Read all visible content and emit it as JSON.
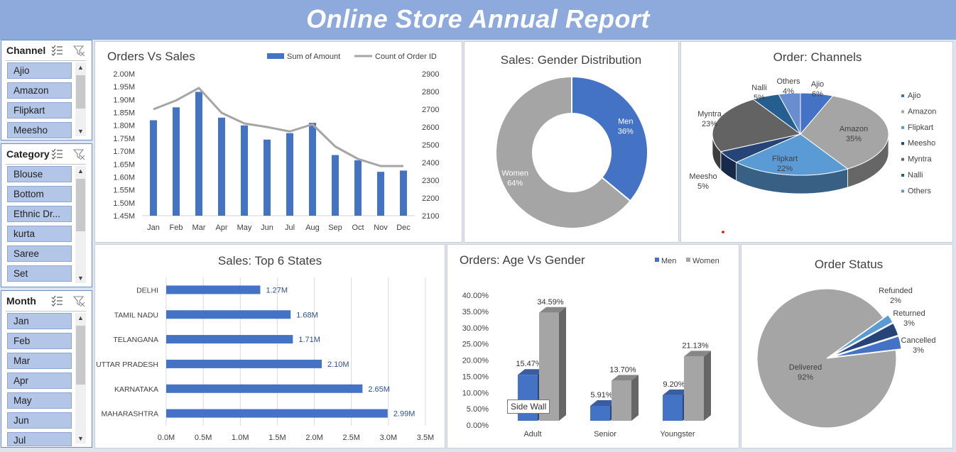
{
  "report_title": "Online Store Annual Report",
  "slicers": [
    {
      "title": "Channel",
      "items": [
        "Ajio",
        "Amazon",
        "Flipkart",
        "Meesho"
      ]
    },
    {
      "title": "Category",
      "items": [
        "Blouse",
        "Bottom",
        "Ethnic Dr...",
        "kurta",
        "Saree",
        "Set"
      ]
    },
    {
      "title": "Month",
      "items": [
        "Jan",
        "Feb",
        "Mar",
        "Apr",
        "May",
        "Jun",
        "Jul"
      ]
    }
  ],
  "tooltip": "Side Wall",
  "chart_data": [
    {
      "type": "bar",
      "title": "Orders Vs Sales",
      "categories": [
        "Jan",
        "Feb",
        "Mar",
        "Apr",
        "May",
        "Jun",
        "Jul",
        "Aug",
        "Sep",
        "Oct",
        "Nov",
        "Dec"
      ],
      "series": [
        {
          "name": "Sum of Amount",
          "type": "bar",
          "axis": "left",
          "values": [
            1.82,
            1.87,
            1.93,
            1.83,
            1.8,
            1.745,
            1.77,
            1.81,
            1.685,
            1.665,
            1.62,
            1.625
          ]
        },
        {
          "name": "Count of Order ID",
          "type": "line",
          "axis": "right",
          "values": [
            2700,
            2750,
            2820,
            2680,
            2620,
            2600,
            2575,
            2615,
            2490,
            2420,
            2380,
            2380
          ]
        }
      ],
      "y_left_ticks": [
        "1.45M",
        "1.50M",
        "1.55M",
        "1.60M",
        "1.65M",
        "1.70M",
        "1.75M",
        "1.80M",
        "1.85M",
        "1.90M",
        "1.95M",
        "2.00M"
      ],
      "y_right_ticks": [
        "2100",
        "2200",
        "2300",
        "2400",
        "2500",
        "2600",
        "2700",
        "2800",
        "2900"
      ],
      "ylim_left": [
        1.45,
        2.0
      ],
      "ylim_right": [
        2100,
        2900
      ],
      "legend_position": "top-right",
      "grid": false,
      "colors": {
        "bar": "#4472c4",
        "line": "#a5a5a5"
      }
    },
    {
      "type": "pie",
      "variant": "donut",
      "title": "Sales: Gender Distribution",
      "slices": [
        {
          "label": "Men",
          "pct_label": "36%",
          "value": 36,
          "color": "#4472c4"
        },
        {
          "label": "Women",
          "pct_label": "64%",
          "value": 64,
          "color": "#a5a5a5"
        }
      ]
    },
    {
      "type": "pie",
      "variant": "3d",
      "title": "Order: Channels",
      "slices": [
        {
          "label": "Ajio",
          "pct_label": "6%",
          "value": 6,
          "color": "#4472c4"
        },
        {
          "label": "Amazon",
          "pct_label": "35%",
          "value": 35,
          "color": "#a5a5a5"
        },
        {
          "label": "Flipkart",
          "pct_label": "22%",
          "value": 22,
          "color": "#5b9bd5"
        },
        {
          "label": "Meesho",
          "pct_label": "5%",
          "value": 5,
          "color": "#264478"
        },
        {
          "label": "Myntra",
          "pct_label": "23%",
          "value": 23,
          "color": "#636363"
        },
        {
          "label": "Nalli",
          "pct_label": "5%",
          "value": 5,
          "color": "#255e91"
        },
        {
          "label": "Others",
          "pct_label": "4%",
          "value": 4,
          "color": "#698ed0"
        }
      ],
      "legend_position": "right"
    },
    {
      "type": "bar",
      "orientation": "horizontal",
      "title": "Sales: Top 6 States",
      "categories": [
        "DELHI",
        "TAMIL NADU",
        "TELANGANA",
        "UTTAR PRADESH",
        "KARNATAKA",
        "MAHARASHTRA"
      ],
      "values": [
        1.27,
        1.68,
        1.71,
        2.1,
        2.65,
        2.99
      ],
      "value_labels": [
        "1.27M",
        "1.68M",
        "1.71M",
        "2.10M",
        "2.65M",
        "2.99M"
      ],
      "x_ticks": [
        "0.0M",
        "0.5M",
        "1.0M",
        "1.5M",
        "2.0M",
        "2.5M",
        "3.0M",
        "3.5M"
      ],
      "xlim": [
        0,
        3.5
      ],
      "grid": true,
      "color": "#4472c4"
    },
    {
      "type": "bar",
      "variant": "3d-clustered",
      "title": "Orders: Age Vs Gender",
      "categories": [
        "Adult",
        "Senior",
        "Youngster"
      ],
      "series": [
        {
          "name": "Men",
          "values": [
            15.47,
            5.91,
            9.2
          ],
          "labels": [
            "15.47%",
            "5.91%",
            "9.20%"
          ],
          "color": "#4472c4"
        },
        {
          "name": "Women",
          "values": [
            34.59,
            13.7,
            21.13
          ],
          "labels": [
            "34.59%",
            "13.70%",
            "21.13%"
          ],
          "color": "#a5a5a5"
        }
      ],
      "y_ticks": [
        "0.00%",
        "5.00%",
        "10.00%",
        "15.00%",
        "20.00%",
        "25.00%",
        "30.00%",
        "35.00%",
        "40.00%"
      ],
      "ylim": [
        0,
        40
      ],
      "legend_position": "top-right"
    },
    {
      "type": "pie",
      "variant": "exploded",
      "title": "Order Status",
      "slices": [
        {
          "label": "Delivered",
          "pct_label": "92%",
          "value": 92,
          "color": "#a5a5a5"
        },
        {
          "label": "Cancelled",
          "pct_label": "3%",
          "value": 3,
          "color": "#4472c4"
        },
        {
          "label": "Returned",
          "pct_label": "3%",
          "value": 3,
          "color": "#264478"
        },
        {
          "label": "Refunded",
          "pct_label": "2%",
          "value": 2,
          "color": "#5b9bd5"
        }
      ]
    }
  ]
}
